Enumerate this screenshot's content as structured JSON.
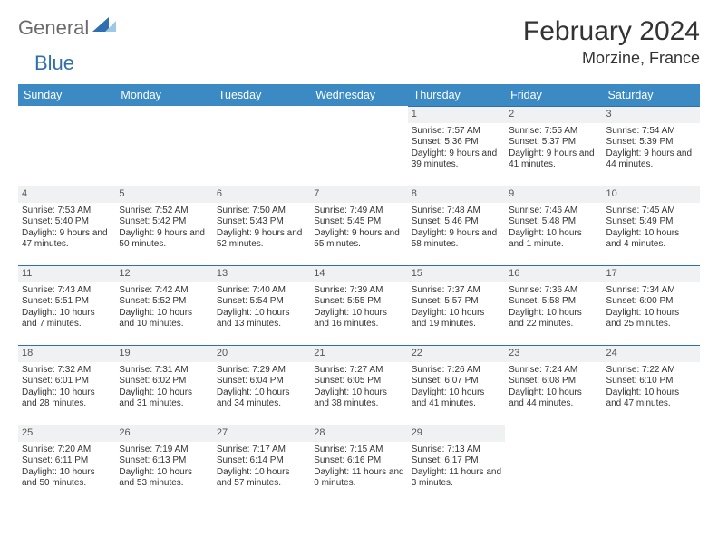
{
  "logo": {
    "general": "General",
    "blue": "Blue"
  },
  "title": {
    "month": "February 2024",
    "location": "Morzine, France"
  },
  "colors": {
    "header_bg": "#3b8ac4",
    "header_text": "#ffffff",
    "daynum_bg": "#eff1f2",
    "daynum_border": "#2f6fb0",
    "text": "#333333",
    "logo_gray": "#6b6b6b",
    "logo_blue": "#2f6fb0"
  },
  "weekdays": [
    "Sunday",
    "Monday",
    "Tuesday",
    "Wednesday",
    "Thursday",
    "Friday",
    "Saturday"
  ],
  "grid": [
    [
      null,
      null,
      null,
      null,
      {
        "n": "1",
        "sunrise": "7:57 AM",
        "sunset": "5:36 PM",
        "day": "9 hours and 39 minutes."
      },
      {
        "n": "2",
        "sunrise": "7:55 AM",
        "sunset": "5:37 PM",
        "day": "9 hours and 41 minutes."
      },
      {
        "n": "3",
        "sunrise": "7:54 AM",
        "sunset": "5:39 PM",
        "day": "9 hours and 44 minutes."
      }
    ],
    [
      {
        "n": "4",
        "sunrise": "7:53 AM",
        "sunset": "5:40 PM",
        "day": "9 hours and 47 minutes."
      },
      {
        "n": "5",
        "sunrise": "7:52 AM",
        "sunset": "5:42 PM",
        "day": "9 hours and 50 minutes."
      },
      {
        "n": "6",
        "sunrise": "7:50 AM",
        "sunset": "5:43 PM",
        "day": "9 hours and 52 minutes."
      },
      {
        "n": "7",
        "sunrise": "7:49 AM",
        "sunset": "5:45 PM",
        "day": "9 hours and 55 minutes."
      },
      {
        "n": "8",
        "sunrise": "7:48 AM",
        "sunset": "5:46 PM",
        "day": "9 hours and 58 minutes."
      },
      {
        "n": "9",
        "sunrise": "7:46 AM",
        "sunset": "5:48 PM",
        "day": "10 hours and 1 minute."
      },
      {
        "n": "10",
        "sunrise": "7:45 AM",
        "sunset": "5:49 PM",
        "day": "10 hours and 4 minutes."
      }
    ],
    [
      {
        "n": "11",
        "sunrise": "7:43 AM",
        "sunset": "5:51 PM",
        "day": "10 hours and 7 minutes."
      },
      {
        "n": "12",
        "sunrise": "7:42 AM",
        "sunset": "5:52 PM",
        "day": "10 hours and 10 minutes."
      },
      {
        "n": "13",
        "sunrise": "7:40 AM",
        "sunset": "5:54 PM",
        "day": "10 hours and 13 minutes."
      },
      {
        "n": "14",
        "sunrise": "7:39 AM",
        "sunset": "5:55 PM",
        "day": "10 hours and 16 minutes."
      },
      {
        "n": "15",
        "sunrise": "7:37 AM",
        "sunset": "5:57 PM",
        "day": "10 hours and 19 minutes."
      },
      {
        "n": "16",
        "sunrise": "7:36 AM",
        "sunset": "5:58 PM",
        "day": "10 hours and 22 minutes."
      },
      {
        "n": "17",
        "sunrise": "7:34 AM",
        "sunset": "6:00 PM",
        "day": "10 hours and 25 minutes."
      }
    ],
    [
      {
        "n": "18",
        "sunrise": "7:32 AM",
        "sunset": "6:01 PM",
        "day": "10 hours and 28 minutes."
      },
      {
        "n": "19",
        "sunrise": "7:31 AM",
        "sunset": "6:02 PM",
        "day": "10 hours and 31 minutes."
      },
      {
        "n": "20",
        "sunrise": "7:29 AM",
        "sunset": "6:04 PM",
        "day": "10 hours and 34 minutes."
      },
      {
        "n": "21",
        "sunrise": "7:27 AM",
        "sunset": "6:05 PM",
        "day": "10 hours and 38 minutes."
      },
      {
        "n": "22",
        "sunrise": "7:26 AM",
        "sunset": "6:07 PM",
        "day": "10 hours and 41 minutes."
      },
      {
        "n": "23",
        "sunrise": "7:24 AM",
        "sunset": "6:08 PM",
        "day": "10 hours and 44 minutes."
      },
      {
        "n": "24",
        "sunrise": "7:22 AM",
        "sunset": "6:10 PM",
        "day": "10 hours and 47 minutes."
      }
    ],
    [
      {
        "n": "25",
        "sunrise": "7:20 AM",
        "sunset": "6:11 PM",
        "day": "10 hours and 50 minutes."
      },
      {
        "n": "26",
        "sunrise": "7:19 AM",
        "sunset": "6:13 PM",
        "day": "10 hours and 53 minutes."
      },
      {
        "n": "27",
        "sunrise": "7:17 AM",
        "sunset": "6:14 PM",
        "day": "10 hours and 57 minutes."
      },
      {
        "n": "28",
        "sunrise": "7:15 AM",
        "sunset": "6:16 PM",
        "day": "11 hours and 0 minutes."
      },
      {
        "n": "29",
        "sunrise": "7:13 AM",
        "sunset": "6:17 PM",
        "day": "11 hours and 3 minutes."
      },
      null,
      null
    ]
  ],
  "labels": {
    "sunrise": "Sunrise: ",
    "sunset": "Sunset: ",
    "daylight": "Daylight: "
  }
}
